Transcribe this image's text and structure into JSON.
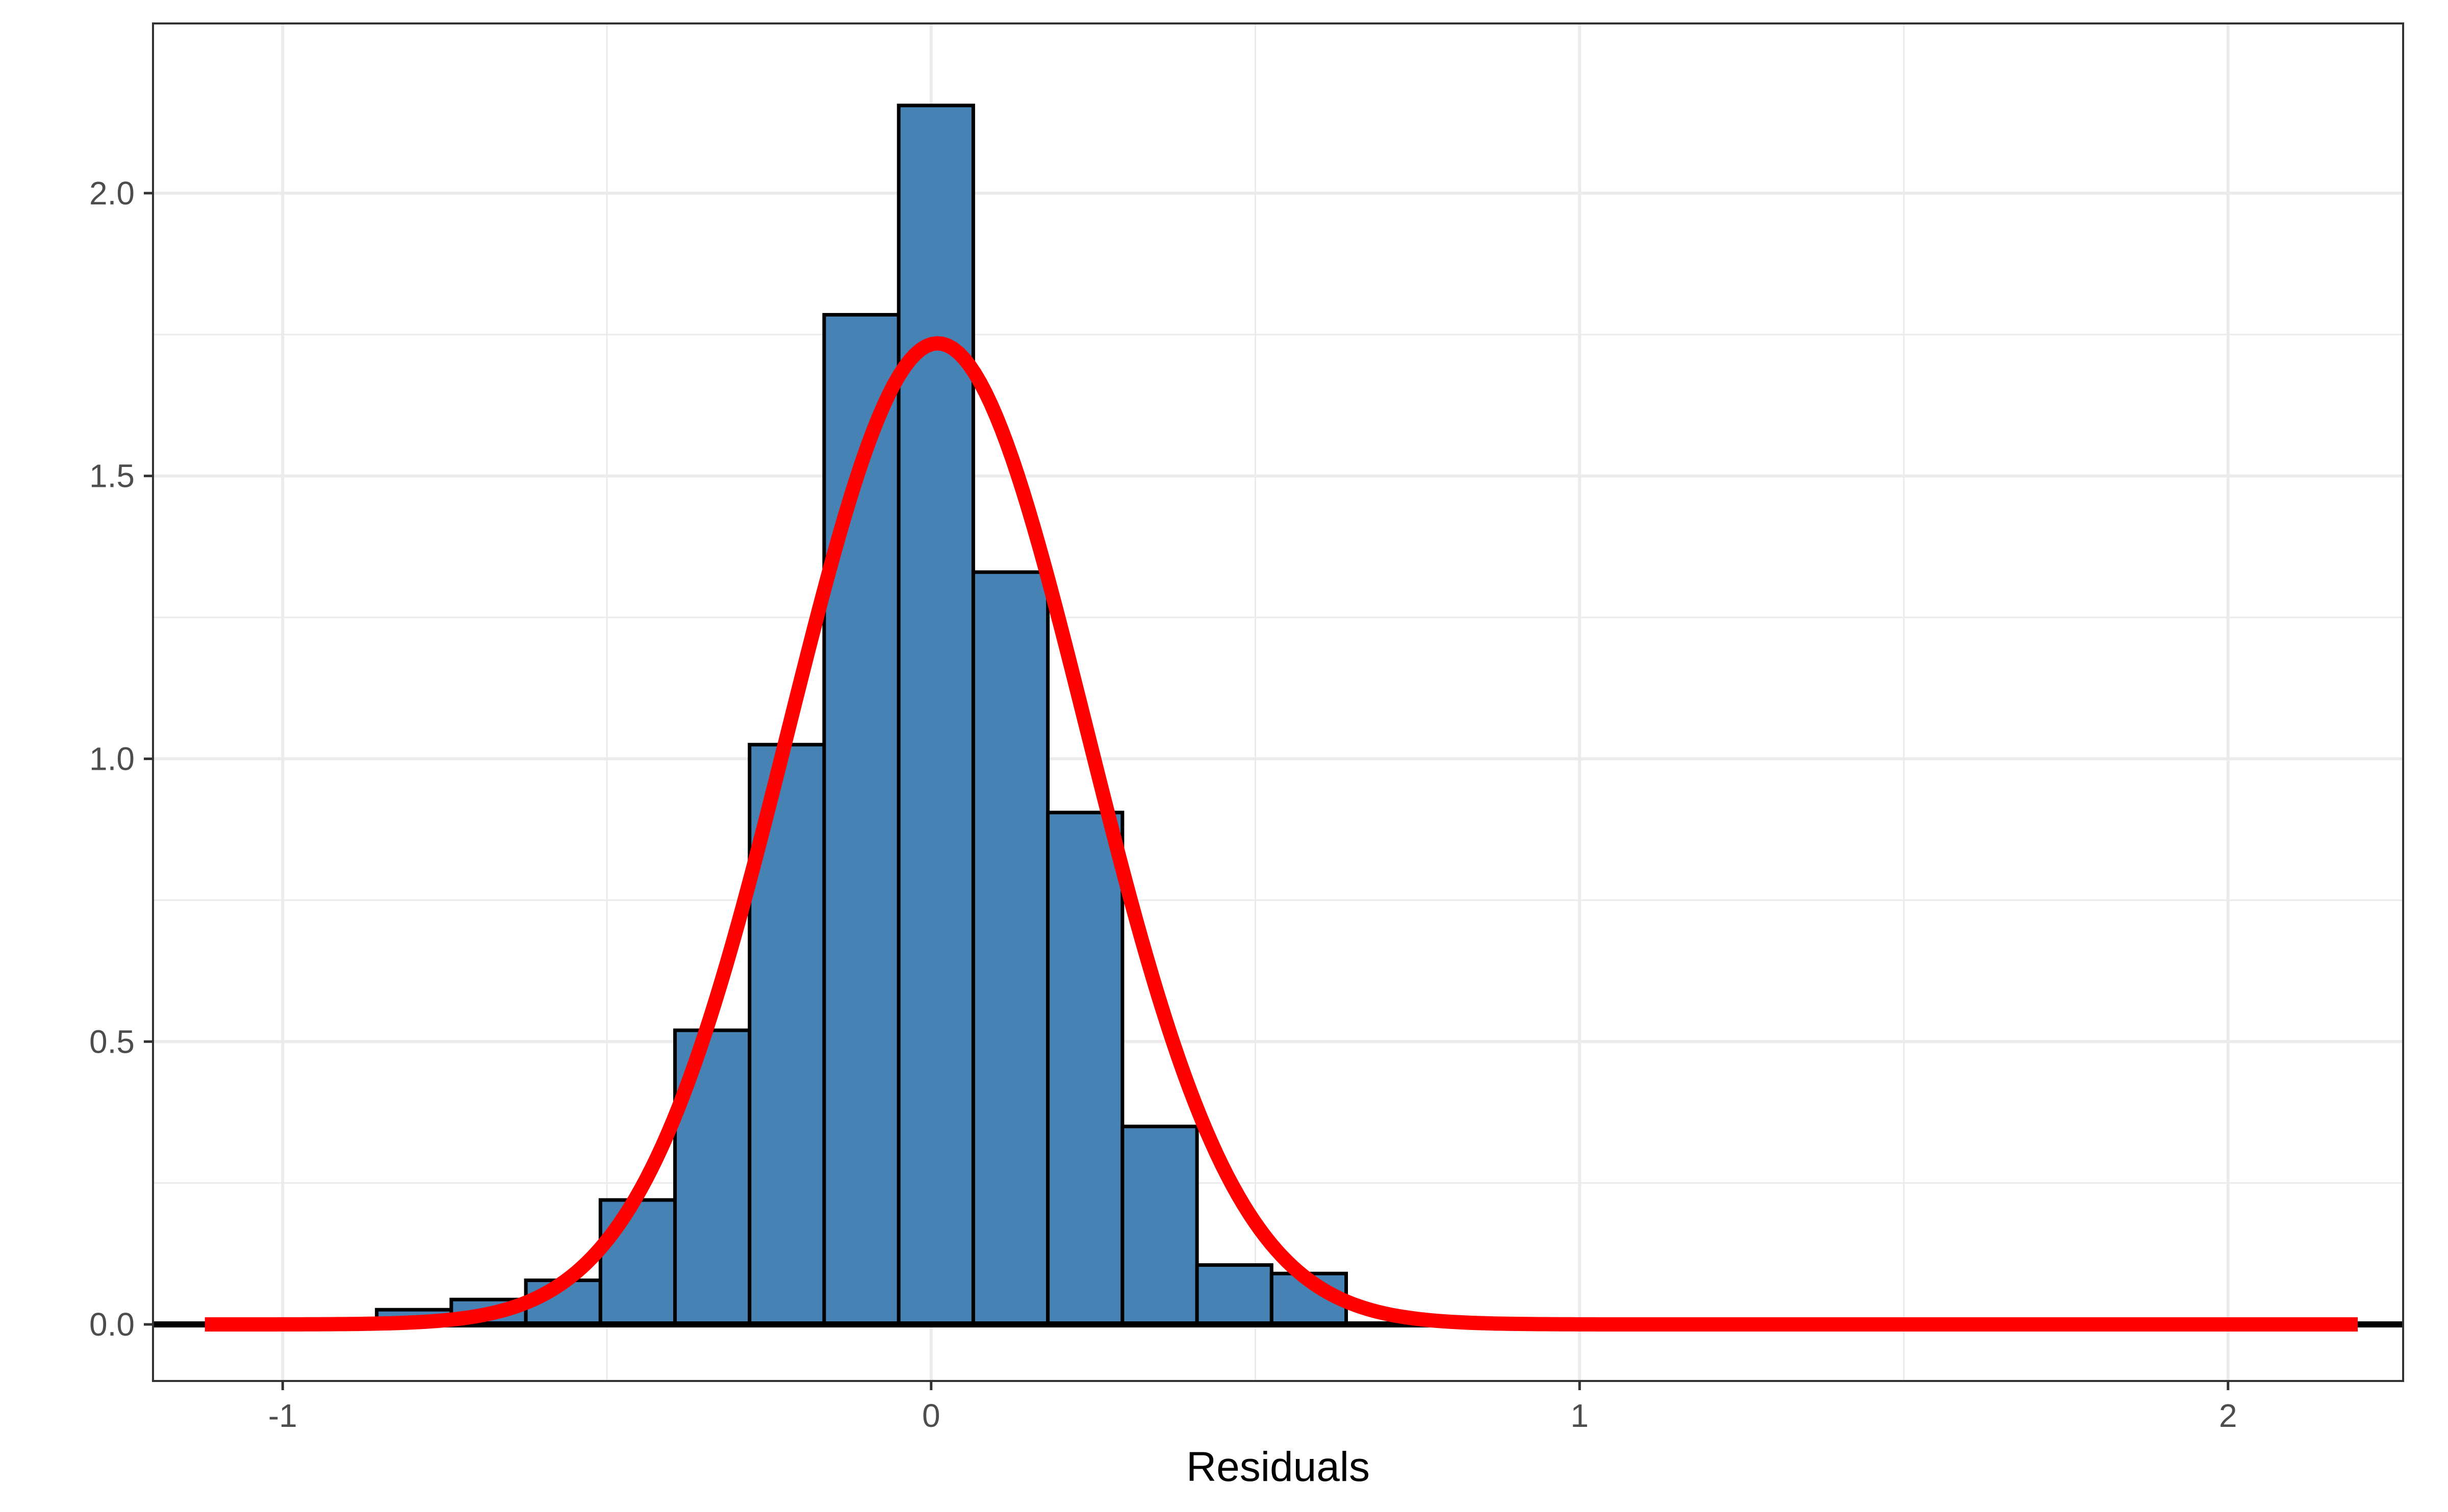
{
  "chart_data": {
    "type": "bar",
    "xlabel": "Residuals",
    "ylabel": "",
    "xlim": [
      -1.2,
      2.27
    ],
    "ylim": [
      -0.1,
      2.3
    ],
    "x_ticks": [
      -1,
      0,
      1,
      2
    ],
    "x_tick_labels": [
      "-1",
      "0",
      "1",
      "2"
    ],
    "y_ticks": [
      0.0,
      0.5,
      1.0,
      1.5,
      2.0
    ],
    "y_tick_labels": [
      "0.0",
      "0.5",
      "1.0",
      "1.5",
      "2.0"
    ],
    "x_minor_ticks": [
      -0.5,
      0.5,
      1.5
    ],
    "y_minor_ticks": [
      0.25,
      0.75,
      1.25,
      1.75
    ],
    "grid": true,
    "histogram": {
      "bin_width": 0.115,
      "bins": [
        {
          "x0": -1.2,
          "x1": -1.085,
          "density": 0.0
        },
        {
          "x0": -1.085,
          "x1": -0.97,
          "density": 0.007
        },
        {
          "x0": -0.97,
          "x1": -0.855,
          "density": 0.0
        },
        {
          "x0": -0.855,
          "x1": -0.74,
          "density": 0.026
        },
        {
          "x0": -0.74,
          "x1": -0.625,
          "density": 0.044
        },
        {
          "x0": -0.625,
          "x1": -0.51,
          "density": 0.078
        },
        {
          "x0": -0.51,
          "x1": -0.395,
          "density": 0.22
        },
        {
          "x0": -0.395,
          "x1": -0.28,
          "density": 0.52
        },
        {
          "x0": -0.28,
          "x1": -0.165,
          "density": 1.025
        },
        {
          "x0": -0.165,
          "x1": -0.05,
          "density": 1.785
        },
        {
          "x0": -0.05,
          "x1": 0.065,
          "density": 2.155
        },
        {
          "x0": 0.065,
          "x1": 0.18,
          "density": 1.33
        },
        {
          "x0": 0.18,
          "x1": 0.295,
          "density": 0.905
        },
        {
          "x0": 0.295,
          "x1": 0.41,
          "density": 0.35
        },
        {
          "x0": 0.41,
          "x1": 0.525,
          "density": 0.105
        },
        {
          "x0": 0.525,
          "x1": 0.64,
          "density": 0.09
        }
      ],
      "baseline_range": [
        -1.2,
        2.27
      ]
    },
    "normal_curve": {
      "mean": 0.01,
      "sd": 0.23,
      "x_range": [
        -1.12,
        2.2
      ]
    },
    "colors": {
      "bar_fill": "#4682b4",
      "bar_outline": "#000000",
      "curve": "#ff0000",
      "grid": "#ebebeb",
      "panel_border": "#333333",
      "tick_text": "#4d4d4d"
    }
  }
}
